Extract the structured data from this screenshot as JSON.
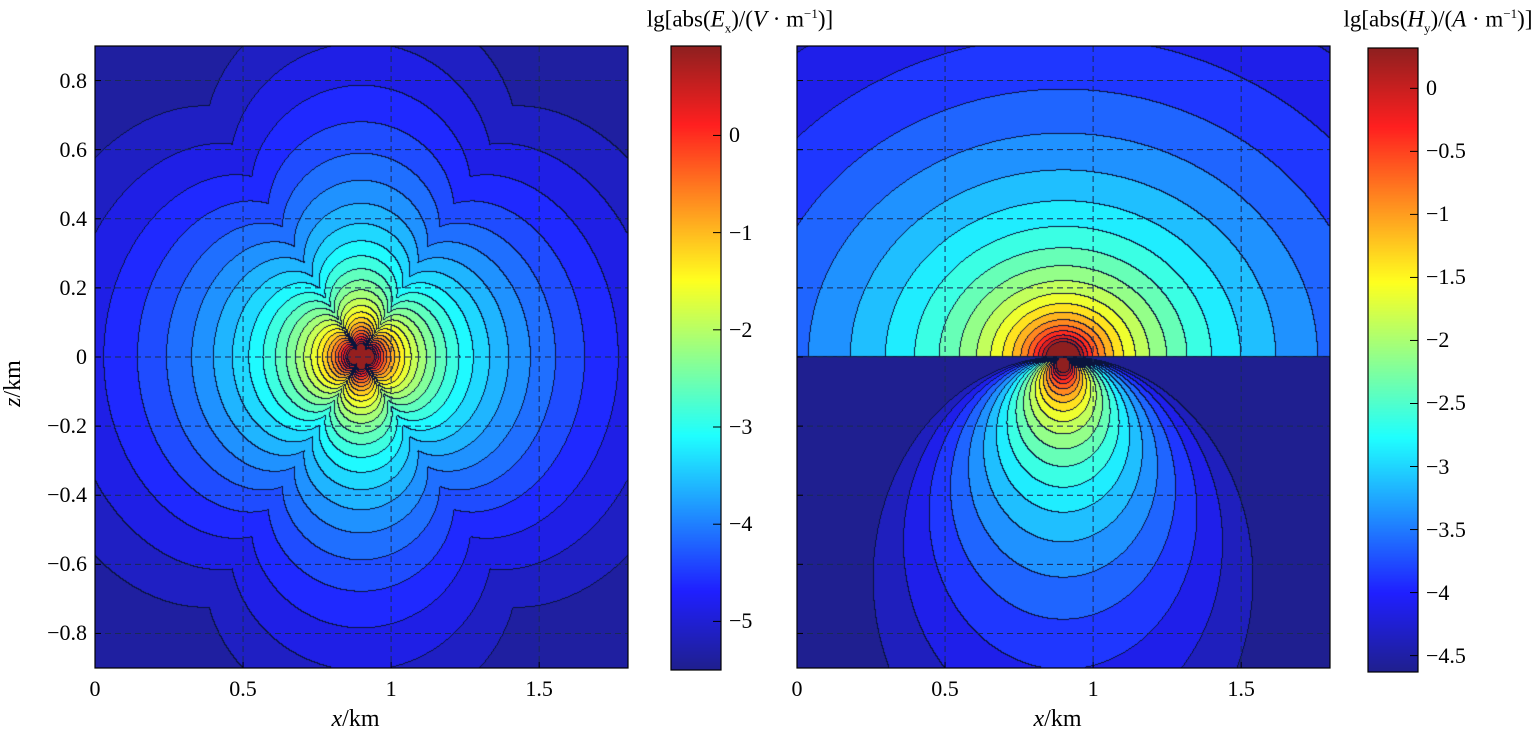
{
  "chart_data": [
    {
      "type": "contour",
      "field": "Ex",
      "colorbar_title_parts": [
        {
          "t": "lg[abs(",
          "s": "n"
        },
        {
          "t": "E",
          "s": "i"
        },
        {
          "t": "x",
          "s": "sub"
        },
        {
          "t": ")/(",
          "s": "n"
        },
        {
          "t": "V",
          "s": "i"
        },
        {
          "t": " · m",
          "s": "n"
        },
        {
          "t": "−1",
          "s": "sup"
        },
        {
          "t": ")]",
          "s": "n"
        }
      ],
      "xlabel_var": "x",
      "xlabel_unit": "/km",
      "ylabel_var": "z",
      "ylabel_unit": "/km",
      "xlim": [
        0,
        1.8
      ],
      "ylim": [
        -0.9,
        0.9
      ],
      "xticks": [
        0,
        0.5,
        1,
        1.5
      ],
      "xtick_labels": [
        "0",
        "0.5",
        "1",
        "1.5"
      ],
      "yticks": [
        0.8,
        0.6,
        0.4,
        0.2,
        0,
        -0.2,
        -0.4,
        -0.6,
        -0.8
      ],
      "ytick_labels": [
        "0.8",
        "0.6",
        "0.4",
        "0.2",
        "0",
        "−0.2",
        "−0.4",
        "−0.6",
        "−0.8"
      ],
      "source": [
        0.9,
        0
      ],
      "clim": [
        -5.5,
        0.92
      ],
      "cticks": [
        0,
        -1,
        -2,
        -3,
        -4,
        -5
      ],
      "ctick_labels": [
        "0",
        "−1",
        "−2",
        "−3",
        "−4",
        "−5"
      ],
      "contour_step": 0.25,
      "grid": "dashed",
      "colormap": "jet"
    },
    {
      "type": "contour",
      "field": "Hy",
      "colorbar_title_parts": [
        {
          "t": "lg[abs(",
          "s": "n"
        },
        {
          "t": "H",
          "s": "i"
        },
        {
          "t": "y",
          "s": "sub"
        },
        {
          "t": ")/(",
          "s": "n"
        },
        {
          "t": "A",
          "s": "i"
        },
        {
          "t": " · m",
          "s": "n"
        },
        {
          "t": "−1",
          "s": "sup"
        },
        {
          "t": ")]",
          "s": "n"
        }
      ],
      "xlabel_var": "x",
      "xlabel_unit": "/km",
      "xlim": [
        0,
        1.8
      ],
      "ylim": [
        -0.9,
        0.9
      ],
      "xticks": [
        0,
        0.5,
        1,
        1.5
      ],
      "xtick_labels": [
        "0",
        "0.5",
        "1",
        "1.5"
      ],
      "yticks": [
        0.8,
        0.6,
        0.4,
        0.2,
        0,
        -0.2,
        -0.4,
        -0.6,
        -0.8
      ],
      "source": [
        0.9,
        0
      ],
      "clim": [
        -4.63,
        0.32
      ],
      "cticks": [
        0,
        -0.5,
        -1,
        -1.5,
        -2,
        -2.5,
        -3,
        -3.5,
        -4,
        -4.5
      ],
      "ctick_labels": [
        "0",
        "−0.5",
        "−1",
        "−1.5",
        "−2",
        "−2.5",
        "−3",
        "−3.5",
        "−4",
        "−4.5"
      ],
      "contour_step": 0.25,
      "grid": "dashed",
      "colormap": "jet"
    }
  ]
}
